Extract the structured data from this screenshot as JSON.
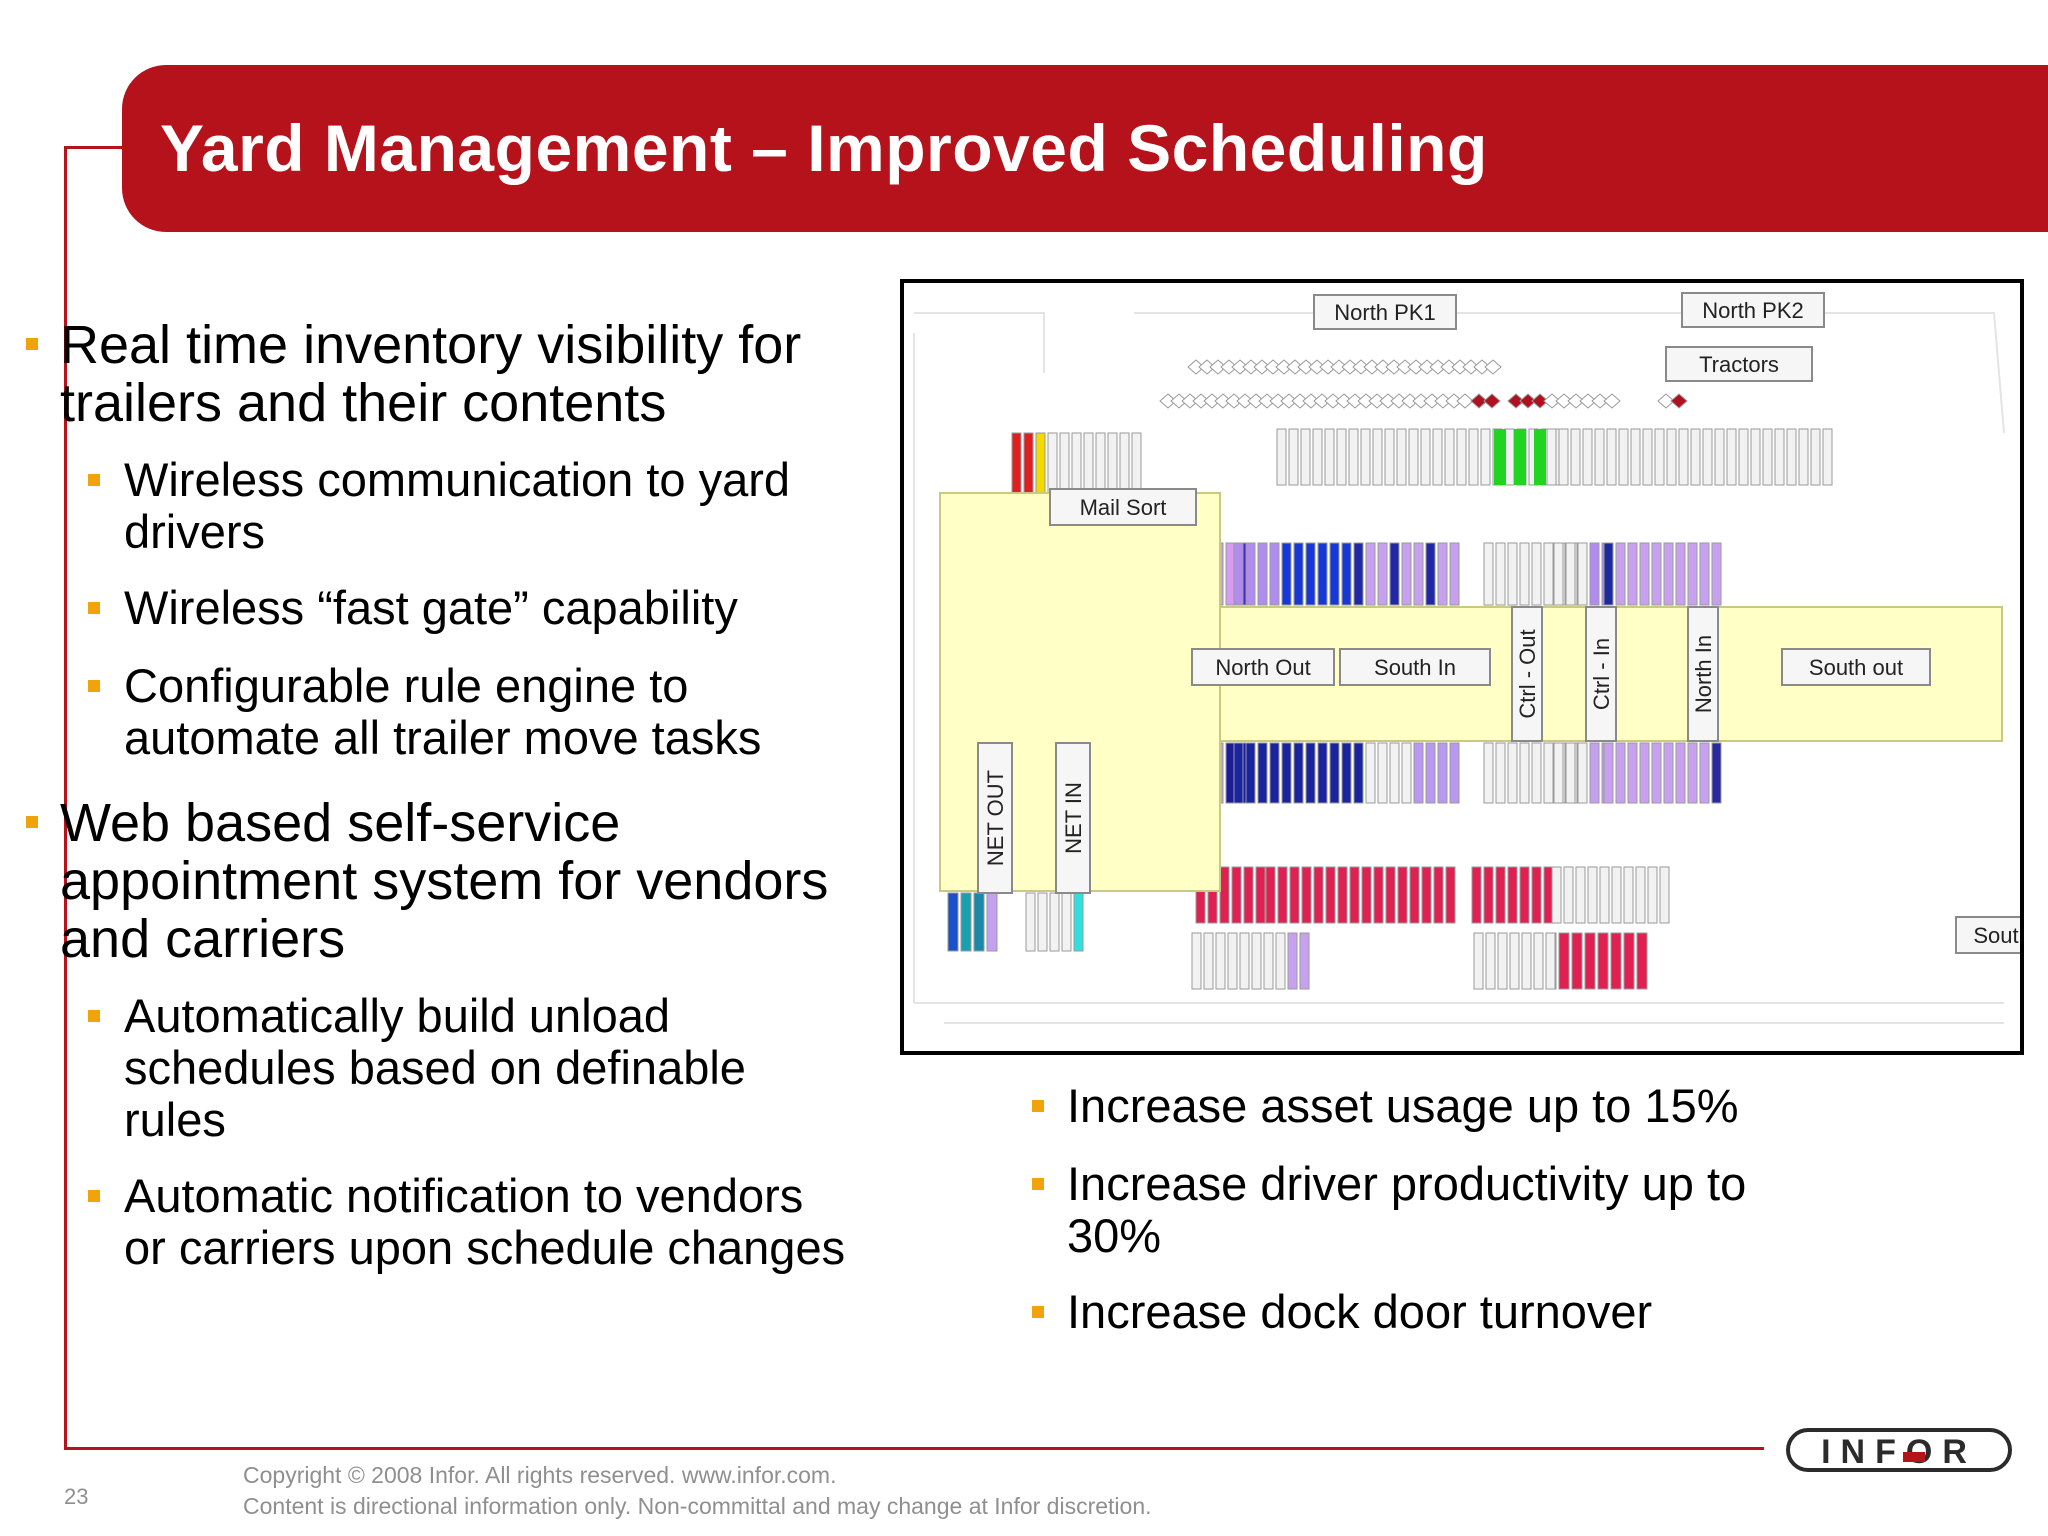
{
  "title": "Yard Management – Improved Scheduling",
  "left_bullets": [
    {
      "level": 1,
      "lines": [
        "Real time inventory visibility for",
        "trailers and their contents"
      ]
    },
    {
      "level": 2,
      "lines": [
        "Wireless communication to yard",
        "drivers"
      ]
    },
    {
      "level": 2,
      "lines": [
        "Wireless “fast gate” capability"
      ]
    },
    {
      "level": 2,
      "lines": [
        "Configurable rule engine to",
        "automate all trailer move tasks"
      ]
    },
    {
      "level": 1,
      "lines": [
        "Web based self-service",
        "appointment system for vendors",
        "and carriers"
      ]
    },
    {
      "level": 2,
      "lines": [
        "Automatically build unload",
        "schedules based on definable",
        "rules"
      ]
    },
    {
      "level": 2,
      "lines": [
        "Automatic notification to vendors",
        "or carriers upon schedule changes"
      ]
    }
  ],
  "right_bullets": [
    {
      "lines": [
        "Increase asset usage up to 15%"
      ]
    },
    {
      "lines": [
        "Increase driver productivity up to",
        "30%"
      ]
    },
    {
      "lines": [
        "Increase dock door turnover"
      ]
    }
  ],
  "yard_map": {
    "labels": {
      "north_pk1": "North PK1",
      "north_pk2": "North PK2",
      "tractors": "Tractors",
      "mail_sort": "Mail Sort",
      "north_out": "North Out",
      "south_in": "South In",
      "ctrl_out": "Ctrl - Out",
      "ctrl_in": "Ctrl - In",
      "north_in": "North In",
      "south_out": "South out",
      "net_out": "NET OUT",
      "net_in": "NET IN",
      "south_cut": "Sout"
    }
  },
  "footer": {
    "copyright": "Copyright © 2008 Infor. All rights reserved. www.infor.com.",
    "disclaimer": "Content is directional information only.   Non-committal and may change at Infor discretion.",
    "page_number": "23"
  },
  "logo_text": "INFOR",
  "colors": {
    "brand_red": "#b5121b",
    "bullet_orange": "#f0a30a"
  }
}
